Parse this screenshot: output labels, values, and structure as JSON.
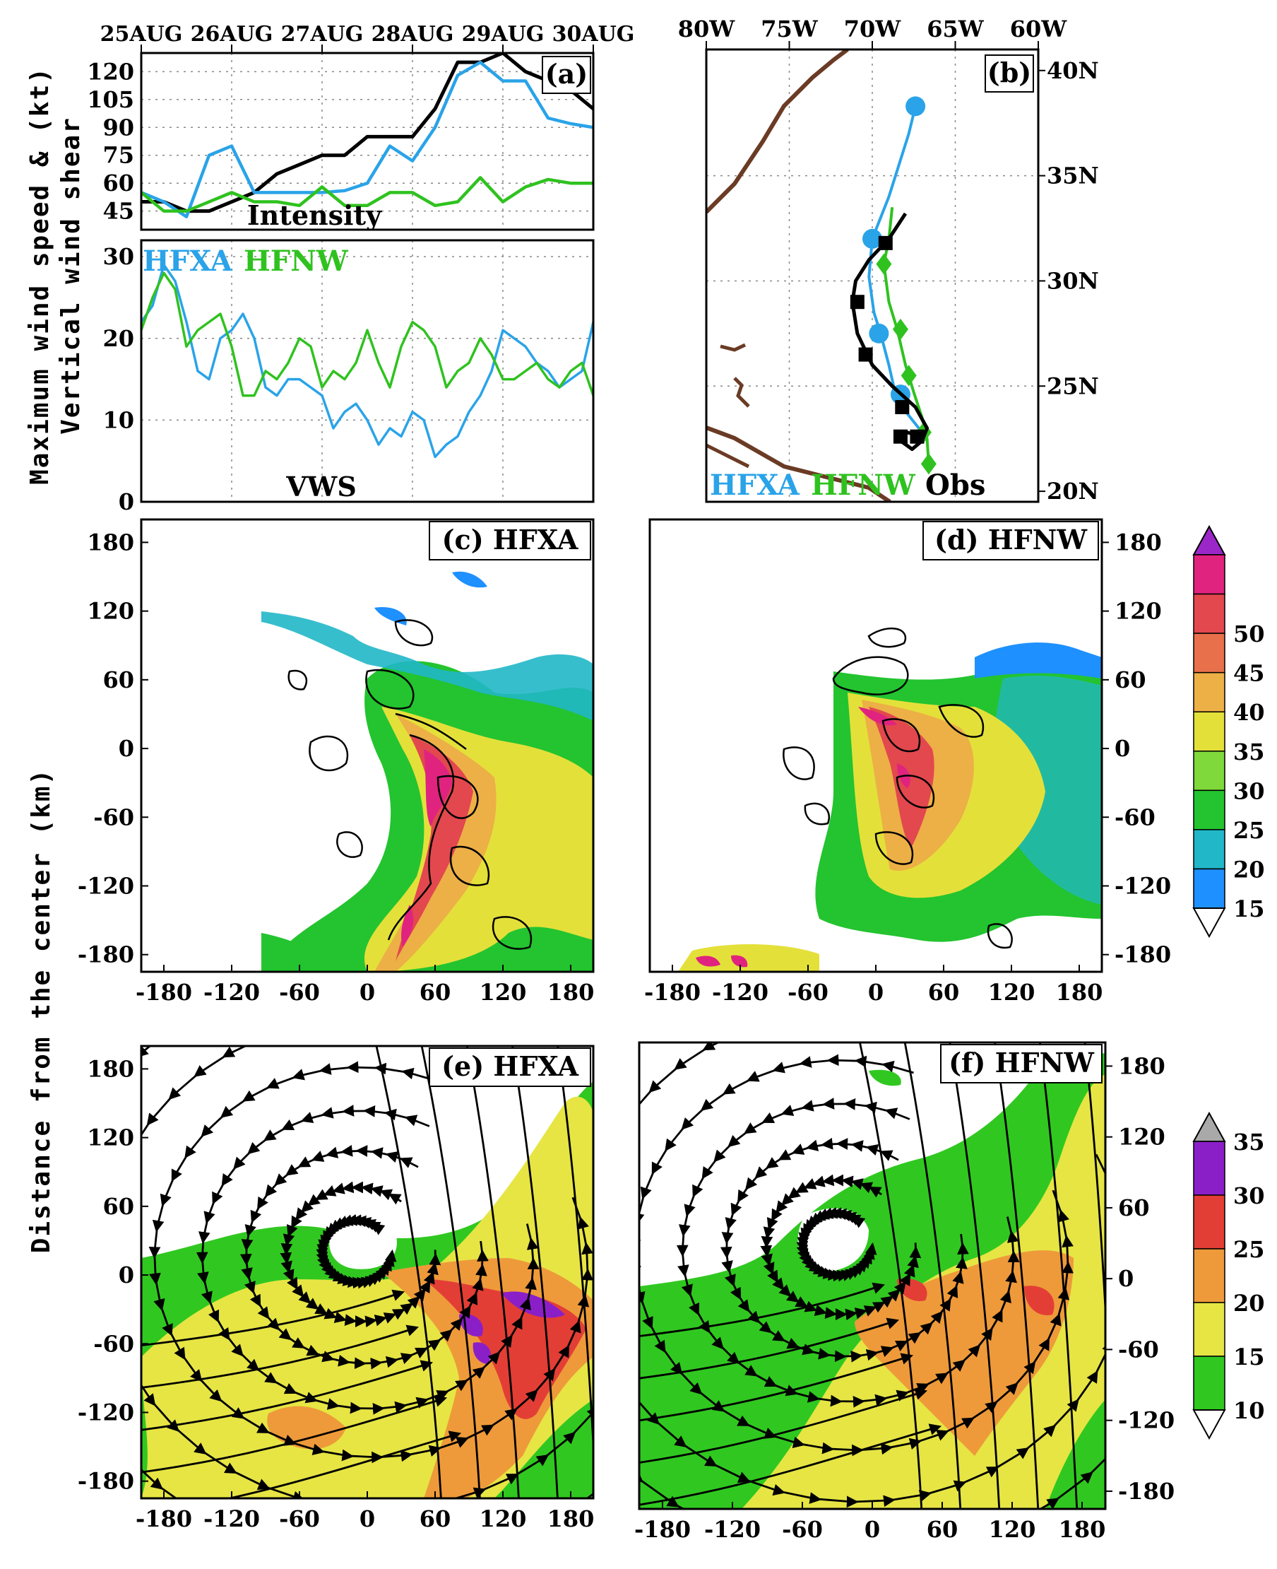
{
  "colors": {
    "hfxa": "#2aa3e8",
    "hfnw": "#2fc21f",
    "obs": "#000000",
    "coast": "#6b3b25"
  },
  "chart_data": [
    {
      "panel": "a",
      "type": "line",
      "title": "(a)",
      "annotation": "Intensity",
      "x": [
        "25AUG",
        "26AUG",
        "27AUG",
        "28AUG",
        "29AUG",
        "30AUG"
      ],
      "ylabel": "Maximum wind speed & (kt)",
      "yticks": [
        45,
        60,
        75,
        90,
        105,
        120
      ],
      "ylim": [
        35,
        130
      ],
      "series": [
        {
          "name": "Obs",
          "color_key": "obs",
          "x": [
            0,
            0.25,
            0.5,
            0.75,
            1.0,
            1.25,
            1.5,
            1.75,
            2.0,
            2.25,
            2.5,
            2.75,
            3.0,
            3.25,
            3.5,
            3.75,
            4.0,
            4.25,
            4.5,
            4.75,
            5.0
          ],
          "values": [
            50,
            50,
            45,
            45,
            50,
            55,
            65,
            70,
            75,
            75,
            85,
            85,
            85,
            100,
            125,
            125,
            130,
            120,
            115,
            110,
            100
          ]
        },
        {
          "name": "HFXA",
          "color_key": "hfxa",
          "x": [
            0,
            0.25,
            0.5,
            0.75,
            1.0,
            1.25,
            1.5,
            1.75,
            2.0,
            2.25,
            2.5,
            2.75,
            3.0,
            3.25,
            3.5,
            3.75,
            4.0,
            4.25,
            4.5,
            4.75,
            5.0
          ],
          "values": [
            55,
            50,
            42,
            75,
            80,
            55,
            55,
            55,
            55,
            56,
            60,
            80,
            72,
            90,
            118,
            125,
            115,
            115,
            95,
            92,
            90
          ]
        },
        {
          "name": "HFNW",
          "color_key": "hfnw",
          "x": [
            0,
            0.25,
            0.5,
            0.75,
            1.0,
            1.25,
            1.5,
            1.75,
            2.0,
            2.25,
            2.5,
            2.75,
            3.0,
            3.25,
            3.5,
            3.75,
            4.0,
            4.25,
            4.5,
            4.75,
            5.0
          ],
          "values": [
            55,
            45,
            45,
            50,
            55,
            50,
            50,
            48,
            58,
            48,
            48,
            55,
            55,
            48,
            50,
            63,
            50,
            58,
            62,
            60,
            60
          ]
        }
      ]
    },
    {
      "panel": "a-vws",
      "type": "line",
      "annotation": "VWS",
      "ylabel": "Vertical wind shear",
      "yticks": [
        0,
        10,
        20,
        30
      ],
      "ylim": [
        0,
        32
      ],
      "legend": [
        "HFXA",
        "HFNW"
      ],
      "series": [
        {
          "name": "HFXA",
          "color_key": "hfxa",
          "x": [
            0,
            0.125,
            0.25,
            0.375,
            0.5,
            0.625,
            0.75,
            0.875,
            1.0,
            1.125,
            1.25,
            1.375,
            1.5,
            1.625,
            1.75,
            1.875,
            2.0,
            2.125,
            2.25,
            2.375,
            2.5,
            2.625,
            2.75,
            2.875,
            3.0,
            3.125,
            3.25,
            3.375,
            3.5,
            3.625,
            3.75,
            3.875,
            4.0,
            4.125,
            4.25,
            4.375,
            4.5,
            4.625,
            4.75,
            4.875,
            5.0
          ],
          "values": [
            22,
            24,
            29,
            27,
            22,
            16,
            15,
            20,
            21,
            23,
            20,
            14,
            13,
            15,
            15,
            14,
            13,
            9,
            11,
            12,
            10,
            7,
            9,
            8,
            11,
            10,
            5.5,
            7,
            8,
            11,
            13,
            16,
            21,
            20,
            19,
            17,
            16,
            14,
            15,
            16,
            22
          ]
        },
        {
          "name": "HFNW",
          "color_key": "hfnw",
          "x": [
            0,
            0.125,
            0.25,
            0.375,
            0.5,
            0.625,
            0.75,
            0.875,
            1.0,
            1.125,
            1.25,
            1.375,
            1.5,
            1.625,
            1.75,
            1.875,
            2.0,
            2.125,
            2.25,
            2.375,
            2.5,
            2.625,
            2.75,
            2.875,
            3.0,
            3.125,
            3.25,
            3.375,
            3.5,
            3.625,
            3.75,
            3.875,
            4.0,
            4.125,
            4.25,
            4.375,
            4.5,
            4.625,
            4.75,
            4.875,
            5.0
          ],
          "values": [
            21,
            25,
            28,
            26,
            19,
            21,
            22,
            23,
            19,
            13,
            13,
            16,
            15,
            17,
            20,
            19,
            14,
            16,
            15,
            17,
            21,
            17,
            14,
            19,
            22,
            21,
            19,
            14,
            16,
            17,
            20,
            18,
            15,
            15,
            16,
            17,
            15,
            14,
            16,
            17,
            13
          ]
        }
      ]
    },
    {
      "panel": "b",
      "type": "line",
      "title": "(b)",
      "x_ticks": [
        "80W",
        "75W",
        "70W",
        "65W",
        "60W"
      ],
      "y_ticks": [
        "40N",
        "35N",
        "30N",
        "25N",
        "20N"
      ],
      "xlim": [
        -80,
        -60
      ],
      "ylim": [
        19.5,
        41
      ],
      "legend": [
        "HFXA",
        "HFNW",
        "Obs"
      ],
      "series": [
        {
          "name": "HFXA",
          "color_key": "hfxa",
          "lon": [
            -67.4,
            -67.8,
            -68.4,
            -69.0,
            -69.5,
            -70.0,
            -70.2,
            -69.9,
            -69.5,
            -69.0,
            -68.6,
            -68.0,
            -67.5,
            -67.0,
            -66.8
          ],
          "lat": [
            38.3,
            37.0,
            35.5,
            34.0,
            33.0,
            32.0,
            30.2,
            28.5,
            27.5,
            26.0,
            24.6,
            23.8,
            23.3,
            22.8,
            22.4
          ],
          "markers": [
            [
              -67.4,
              38.3
            ],
            [
              -70.0,
              32.0
            ],
            [
              -69.6,
              27.5
            ],
            [
              -68.3,
              24.6
            ]
          ]
        },
        {
          "name": "HFNW",
          "color_key": "hfnw",
          "lon": [
            -68.8,
            -69.0,
            -69.3,
            -69.0,
            -68.5,
            -68.0,
            -67.5,
            -67.0,
            -66.7,
            -66.6
          ],
          "lat": [
            33.5,
            32.0,
            30.8,
            29.0,
            27.7,
            26.0,
            24.7,
            23.5,
            22.5,
            21.3
          ],
          "markers": [
            [
              -69.3,
              30.8
            ],
            [
              -68.3,
              27.7
            ],
            [
              -67.8,
              25.5
            ],
            [
              -66.9,
              22.8
            ],
            [
              -66.6,
              21.3
            ]
          ]
        },
        {
          "name": "Obs",
          "color_key": "obs",
          "lon": [
            -68.0,
            -69.0,
            -70.2,
            -71.0,
            -71.2,
            -70.9,
            -70.0,
            -68.8,
            -67.4,
            -66.7,
            -67.0,
            -67.6,
            -68.3,
            -67.9,
            -67.0
          ],
          "lat": [
            33.2,
            32.0,
            31.0,
            30.0,
            29.0,
            27.5,
            26.0,
            25.0,
            24.0,
            23.0,
            22.4,
            22.0,
            22.4,
            22.8,
            22.6
          ],
          "markers": [
            [
              -69.2,
              31.8
            ],
            [
              -70.9,
              29.0
            ],
            [
              -70.4,
              26.5
            ],
            [
              -68.2,
              24.0
            ],
            [
              -67.3,
              22.6
            ],
            [
              -68.3,
              22.6
            ]
          ]
        }
      ]
    },
    {
      "panel": "c-f",
      "type": "heatmap",
      "panels": [
        "(c) HFXA",
        "(d) HFNW",
        "(e) HFXA",
        "(f) HFNW"
      ],
      "x_ticks": [
        -180,
        -120,
        -60,
        0,
        60,
        120,
        180
      ],
      "y_ticks": [
        180,
        120,
        60,
        0,
        -60,
        -120,
        -180
      ],
      "xlim": [
        -200,
        200
      ],
      "ylim": [
        -195,
        200
      ],
      "ylabel": "Distance from the center (km)",
      "colorbar_upper": {
        "levels": [
          15,
          20,
          25,
          30,
          35,
          40,
          45,
          50
        ],
        "colors": [
          "#ffffff",
          "#1e90ff",
          "#21b7c8",
          "#23c42f",
          "#7fd93a",
          "#e4e03a",
          "#ecb046",
          "#e8704a",
          "#e2484e",
          "#e0237f",
          "#9b27c9"
        ]
      },
      "colorbar_lower": {
        "levels": [
          10,
          15,
          20,
          25,
          30,
          35
        ],
        "colors": [
          "#ffffff",
          "#30c820",
          "#e6e544",
          "#ee9a3a",
          "#e33e35",
          "#8a1fc8",
          "#a9a9a9"
        ]
      }
    }
  ]
}
